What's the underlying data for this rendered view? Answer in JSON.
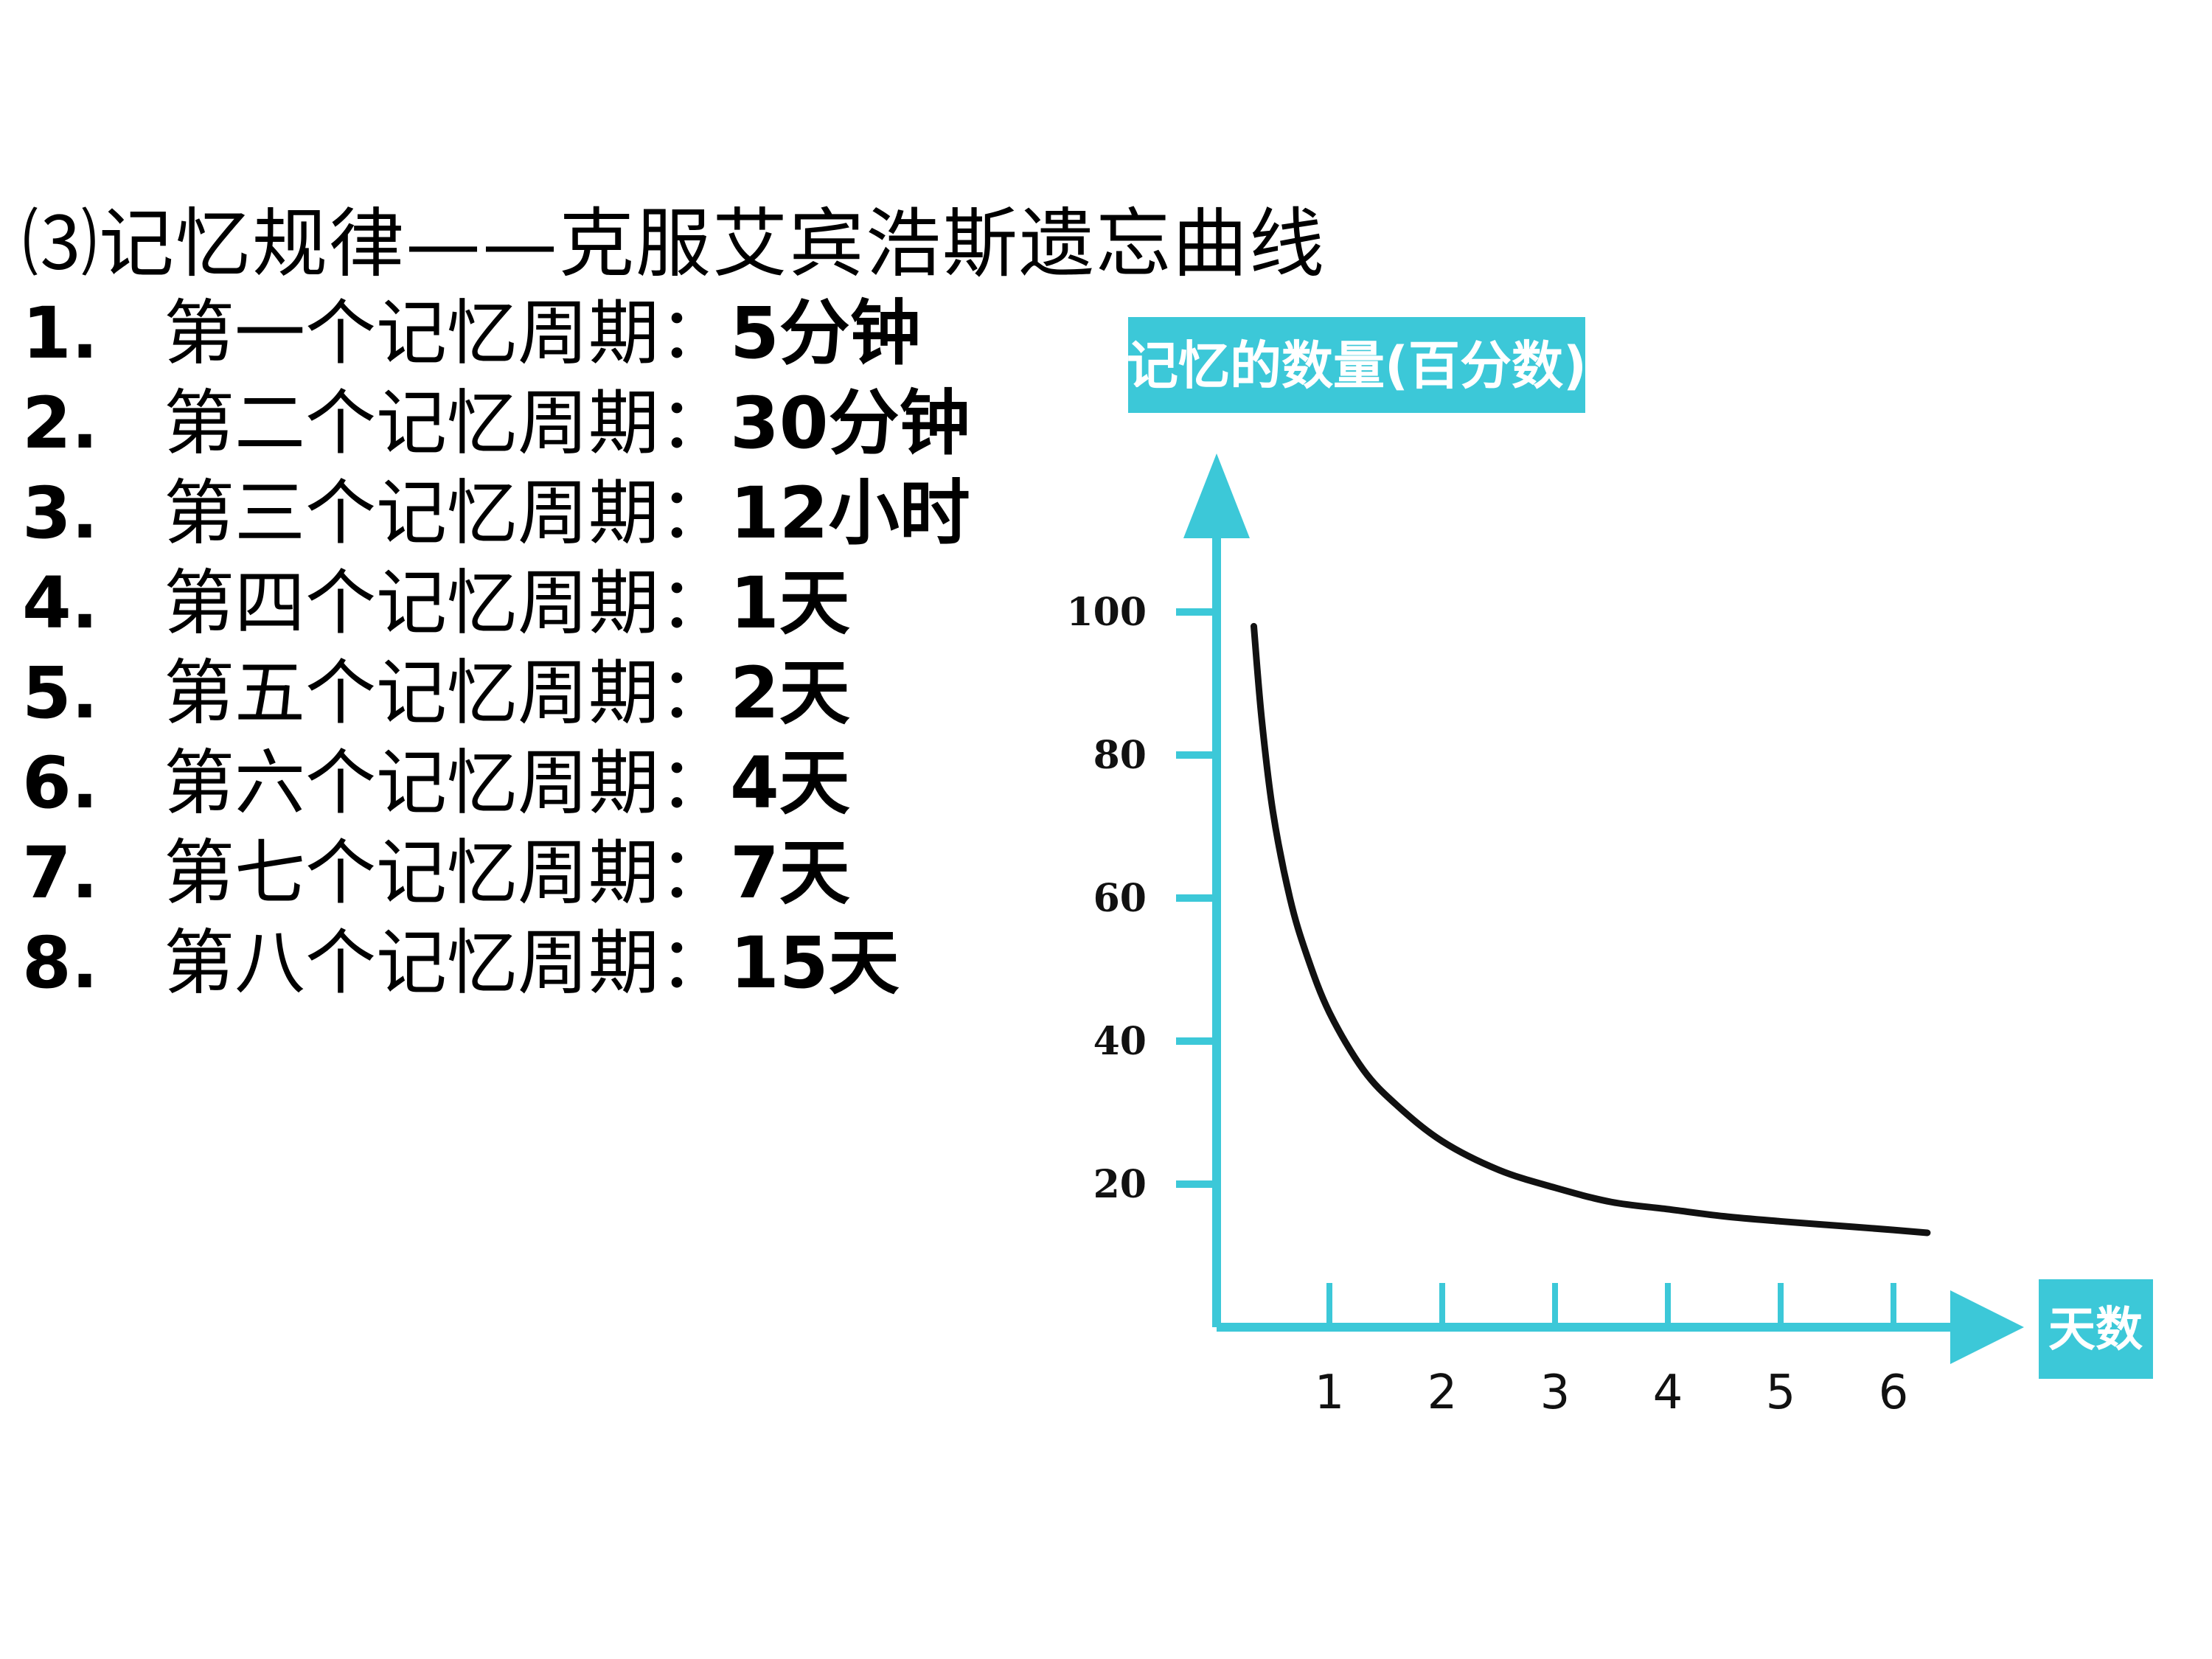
{
  "heading": "⑶记忆规律——克服艾宾浩斯遗忘曲线",
  "periods": [
    {
      "num": "1.",
      "label": "第一个记忆周期：",
      "value": "5分钟"
    },
    {
      "num": "2.",
      "label": "第二个记忆周期：",
      "value": "30分钟"
    },
    {
      "num": "3.",
      "label": "第三个记忆周期：",
      "value": "12小时"
    },
    {
      "num": "4.",
      "label": "第四个记忆周期：",
      "value": "1天"
    },
    {
      "num": "5.",
      "label": "第五个记忆周期：",
      "value": "2天"
    },
    {
      "num": "6.",
      "label": "第六个记忆周期：",
      "value": "4天"
    },
    {
      "num": "7.",
      "label": "第七个记忆周期：",
      "value": "7天"
    },
    {
      "num": "8.",
      "label": "第八个记忆周期：",
      "value": "15天"
    }
  ],
  "colors": {
    "axis": "#3cc8d8",
    "curve": "#111111",
    "box": "#3cc8d8"
  },
  "chart_data": {
    "type": "line",
    "ylabel": "记忆的数量(百分数)",
    "xlabel": "天数",
    "ylim": [
      0,
      100
    ],
    "xlim": [
      0,
      6
    ],
    "yticks": [
      100,
      80,
      60,
      40,
      20
    ],
    "xticks": [
      1,
      2,
      3,
      4,
      5,
      6
    ],
    "grid": false,
    "series": [
      {
        "x": [
          0.33,
          0.4,
          0.5,
          0.65,
          0.8,
          1.0,
          1.3,
          1.6,
          2.0,
          2.5,
          3.0,
          3.5,
          4.0,
          4.5,
          5.0,
          5.5,
          6.0,
          6.3
        ],
        "values": [
          98,
          85,
          72,
          60,
          52,
          44,
          36,
          31,
          26,
          22,
          19.5,
          17.5,
          16.5,
          15.5,
          14.8,
          14.2,
          13.6,
          13.2
        ]
      }
    ]
  }
}
